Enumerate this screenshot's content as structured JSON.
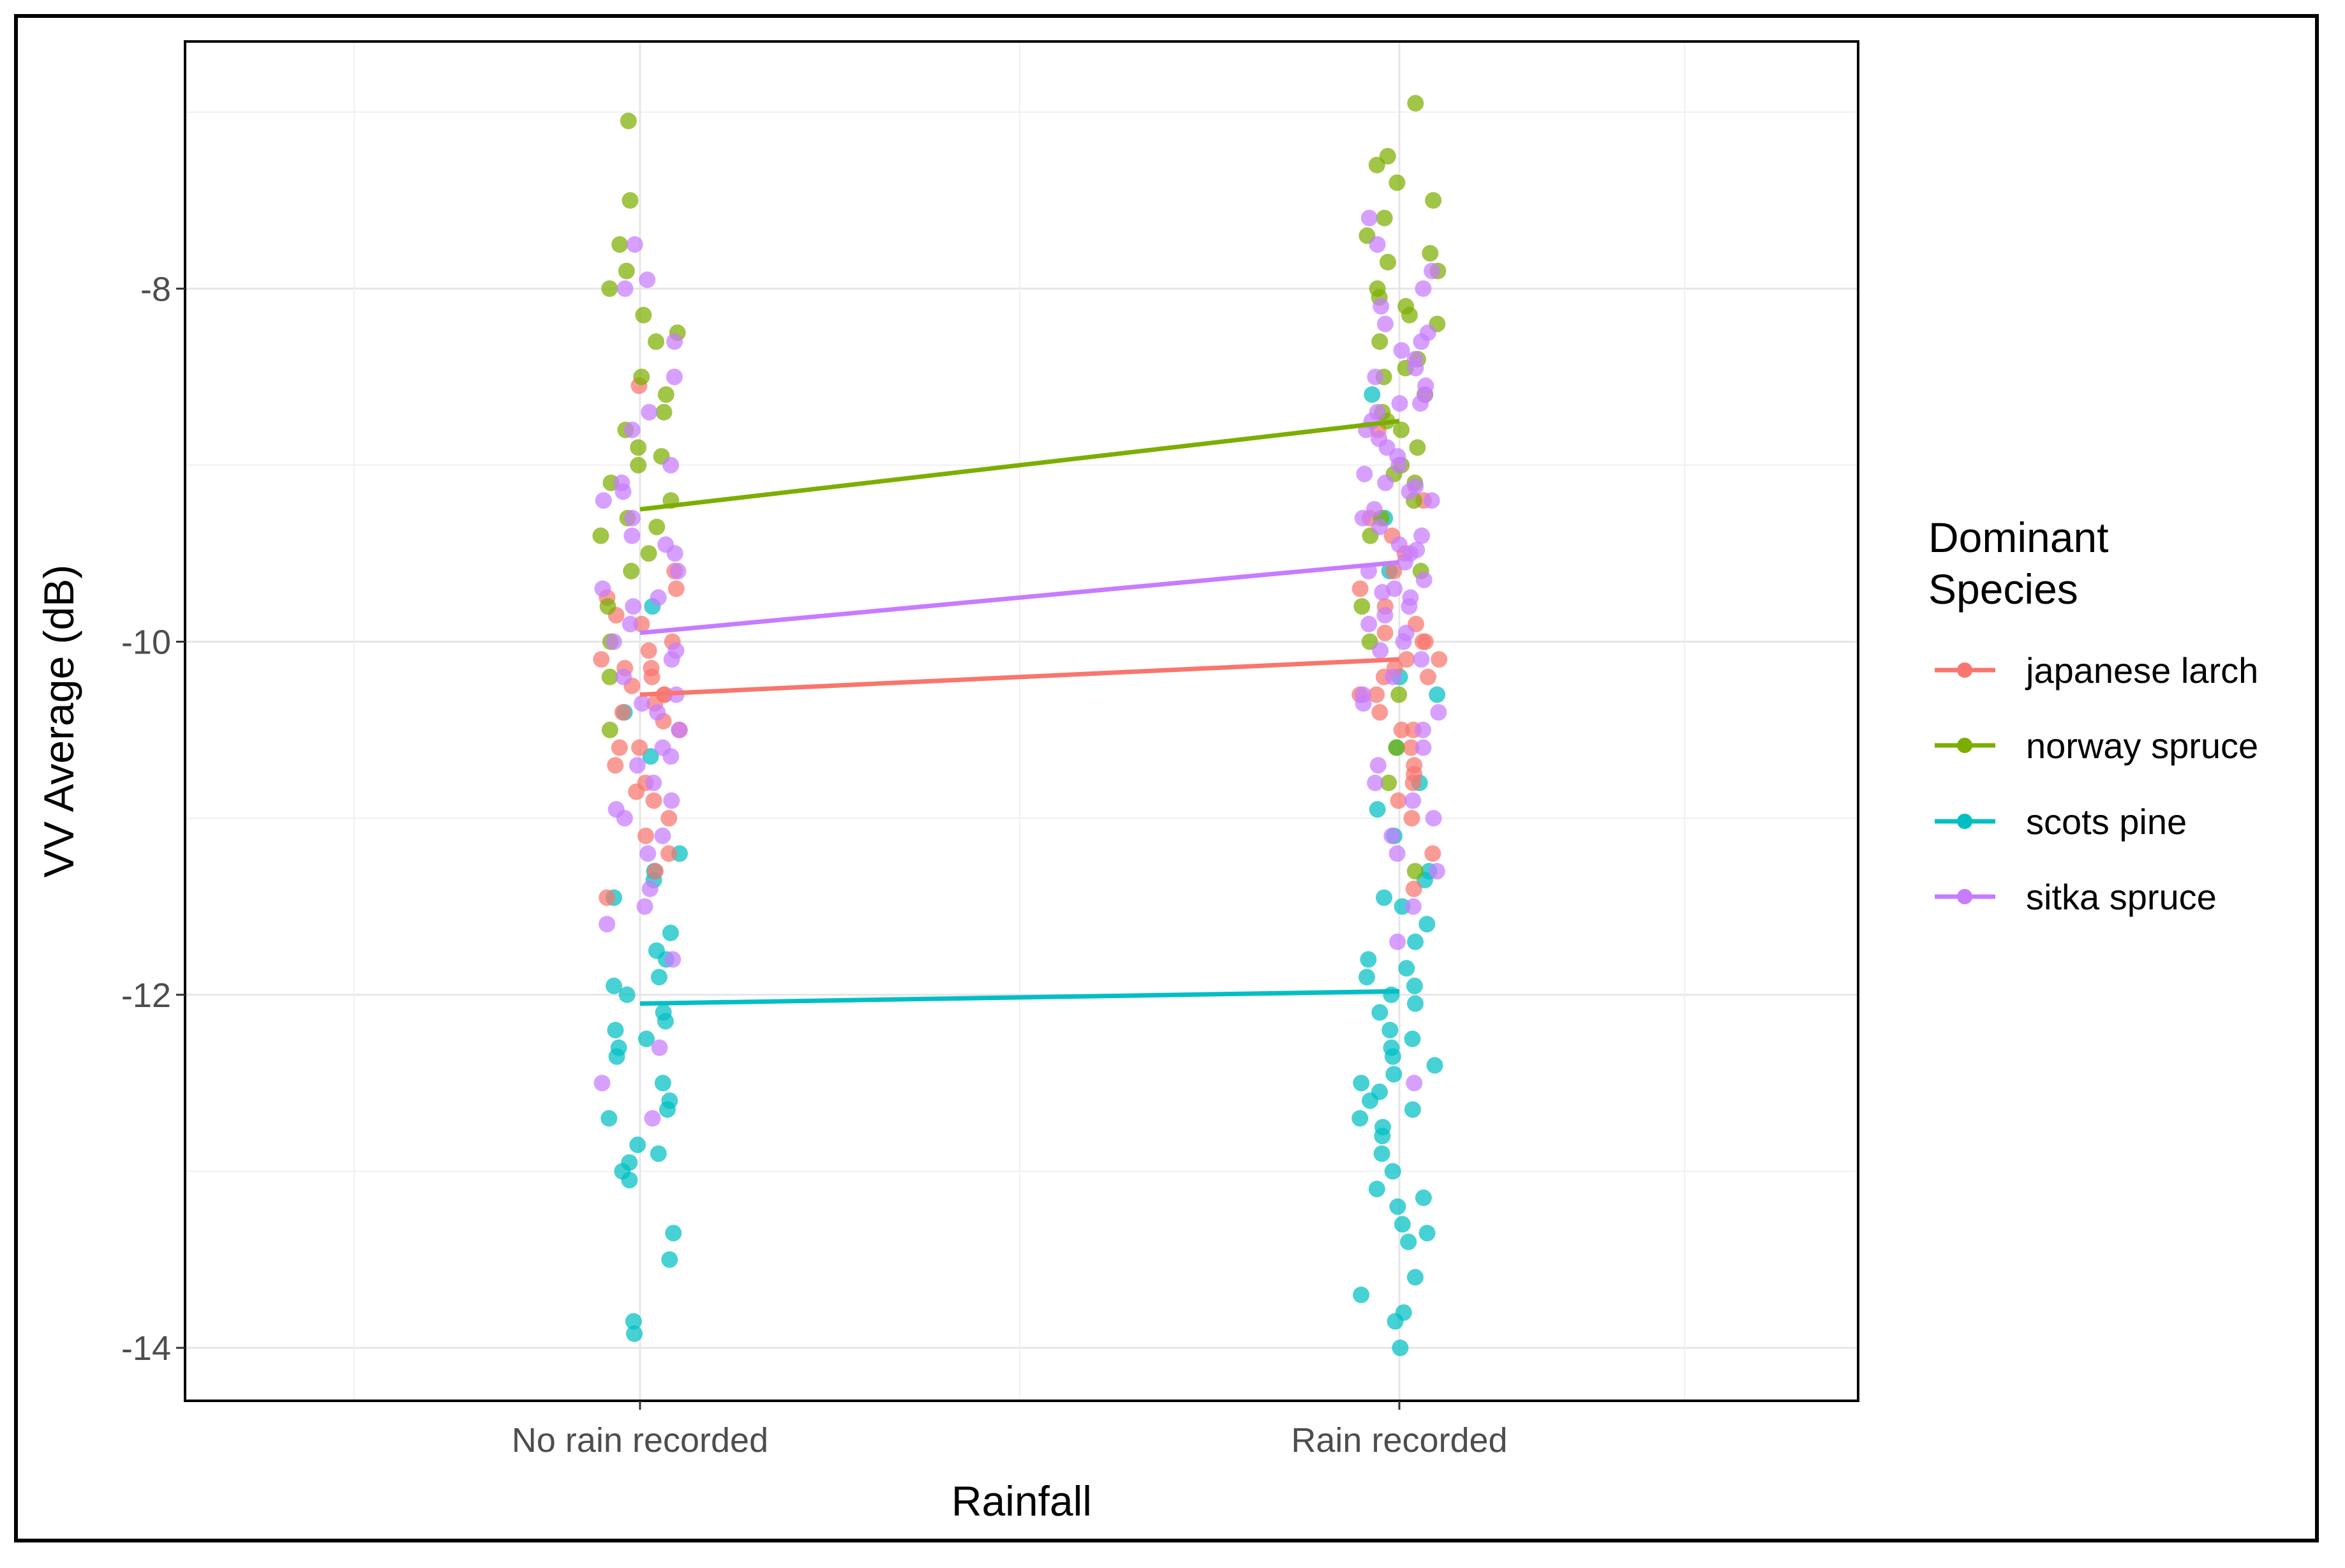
{
  "chart_data": {
    "type": "scatter",
    "title": "",
    "xlabel": "Rainfall",
    "ylabel": "VV Average (dB)",
    "categories": [
      "No rain recorded",
      "Rain recorded"
    ],
    "ylim": [
      -14.3,
      -6.6
    ],
    "yticks": [
      -14,
      -12,
      -10,
      -8
    ],
    "grid": true,
    "legend": {
      "title_line1": "Dominant",
      "title_line2": "Species",
      "position": "right"
    },
    "series": [
      {
        "name": "japanese larch",
        "color": "#F8766D",
        "mean_values": [
          -10.3,
          -10.1
        ],
        "points": {
          "No rain recorded": [
            -8.55,
            -9.7,
            -9.85,
            -9.9,
            -10.0,
            -10.05,
            -10.1,
            -10.15,
            -10.2,
            -10.25,
            -10.3,
            -10.35,
            -10.4,
            -10.45,
            -10.5,
            -10.6,
            -10.7,
            -10.8,
            -10.9,
            -11.0,
            -11.1,
            -11.3,
            -11.45,
            -9.6,
            -9.75,
            -10.6,
            -10.85,
            -10.3,
            -10.15,
            -11.2
          ],
          "Rain recorded": [
            -8.8,
            -9.2,
            -9.4,
            -9.6,
            -9.7,
            -9.8,
            -9.9,
            -10.0,
            -10.0,
            -10.1,
            -10.1,
            -10.2,
            -10.2,
            -10.3,
            -10.4,
            -10.5,
            -10.6,
            -10.7,
            -10.8,
            -10.9,
            -11.0,
            -11.2,
            -11.4,
            -9.3,
            -9.5,
            -10.3,
            -10.5,
            -10.15,
            -9.95,
            -10.75
          ]
        }
      },
      {
        "name": "norway spruce",
        "color": "#7CAE00",
        "mean_values": [
          -9.25,
          -8.75
        ],
        "points": {
          "No rain recorded": [
            -7.05,
            -7.5,
            -7.75,
            -7.9,
            -8.0,
            -8.15,
            -8.25,
            -8.3,
            -8.5,
            -8.6,
            -8.7,
            -8.8,
            -8.9,
            -9.0,
            -9.1,
            -9.2,
            -9.3,
            -9.4,
            -9.5,
            -9.6,
            -9.8,
            -10.0,
            -10.2,
            -10.5,
            -8.95,
            -9.35
          ],
          "Rain recorded": [
            -6.95,
            -7.25,
            -7.3,
            -7.4,
            -7.5,
            -7.6,
            -7.7,
            -7.8,
            -7.85,
            -7.9,
            -8.0,
            -8.05,
            -8.1,
            -8.2,
            -8.3,
            -8.4,
            -8.5,
            -8.6,
            -8.7,
            -8.8,
            -8.9,
            -9.0,
            -9.1,
            -9.2,
            -9.3,
            -9.4,
            -9.6,
            -9.8,
            -10.0,
            -10.3,
            -10.6,
            -10.8,
            -11.3,
            -8.15,
            -8.45,
            -8.75,
            -9.05
          ]
        }
      },
      {
        "name": "scots pine",
        "color": "#00BFC4",
        "mean_values": [
          -12.05,
          -11.98
        ],
        "points": {
          "No rain recorded": [
            -9.8,
            -10.4,
            -10.65,
            -11.2,
            -11.3,
            -11.35,
            -11.45,
            -11.65,
            -11.75,
            -11.8,
            -11.9,
            -12.0,
            -12.1,
            -12.2,
            -12.25,
            -12.3,
            -12.35,
            -12.5,
            -12.6,
            -12.65,
            -12.7,
            -12.85,
            -12.9,
            -12.95,
            -13.0,
            -13.05,
            -13.35,
            -13.5,
            -13.85,
            -13.92,
            -12.15,
            -11.95
          ],
          "Rain recorded": [
            -8.6,
            -9.3,
            -9.6,
            -10.2,
            -10.3,
            -10.6,
            -10.8,
            -10.95,
            -11.1,
            -11.3,
            -11.35,
            -11.45,
            -11.5,
            -11.6,
            -11.7,
            -11.8,
            -11.85,
            -11.9,
            -11.95,
            -12.0,
            -12.05,
            -12.1,
            -12.2,
            -12.3,
            -12.35,
            -12.4,
            -12.45,
            -12.5,
            -12.55,
            -12.6,
            -12.65,
            -12.7,
            -12.8,
            -12.9,
            -13.0,
            -13.1,
            -13.15,
            -13.2,
            -13.3,
            -13.35,
            -13.4,
            -13.6,
            -13.7,
            -13.8,
            -13.85,
            -14.0,
            -12.25,
            -12.75
          ]
        }
      },
      {
        "name": "sitka spruce",
        "color": "#C77CFF",
        "mean_values": [
          -9.95,
          -9.55
        ],
        "points": {
          "No rain recorded": [
            -7.75,
            -7.95,
            -8.0,
            -8.3,
            -8.5,
            -8.7,
            -8.8,
            -9.0,
            -9.1,
            -9.2,
            -9.3,
            -9.4,
            -9.5,
            -9.6,
            -9.7,
            -9.8,
            -9.9,
            -10.0,
            -10.1,
            -10.2,
            -10.3,
            -10.4,
            -10.5,
            -10.6,
            -10.7,
            -10.8,
            -10.9,
            -11.0,
            -11.1,
            -11.2,
            -11.4,
            -11.5,
            -11.6,
            -11.8,
            -12.3,
            -12.5,
            -12.7,
            -9.15,
            -9.45,
            -9.75,
            -10.05,
            -10.35,
            -10.65,
            -10.95
          ],
          "Rain recorded": [
            -7.6,
            -7.75,
            -7.9,
            -8.0,
            -8.1,
            -8.2,
            -8.25,
            -8.3,
            -8.4,
            -8.45,
            -8.5,
            -8.55,
            -8.6,
            -8.65,
            -8.7,
            -8.75,
            -8.8,
            -8.85,
            -8.9,
            -8.95,
            -9.0,
            -9.05,
            -9.1,
            -9.15,
            -9.2,
            -9.25,
            -9.3,
            -9.35,
            -9.4,
            -9.45,
            -9.5,
            -9.55,
            -9.6,
            -9.65,
            -9.7,
            -9.75,
            -9.8,
            -9.85,
            -9.9,
            -9.95,
            -10.0,
            -10.1,
            -10.2,
            -10.3,
            -10.4,
            -10.5,
            -10.6,
            -10.7,
            -10.8,
            -10.9,
            -11.0,
            -11.1,
            -11.2,
            -11.3,
            -11.5,
            -11.7,
            -12.5,
            -8.35,
            -8.65,
            -9.12,
            -9.48,
            -9.72,
            -10.05,
            -10.35
          ]
        }
      }
    ]
  }
}
